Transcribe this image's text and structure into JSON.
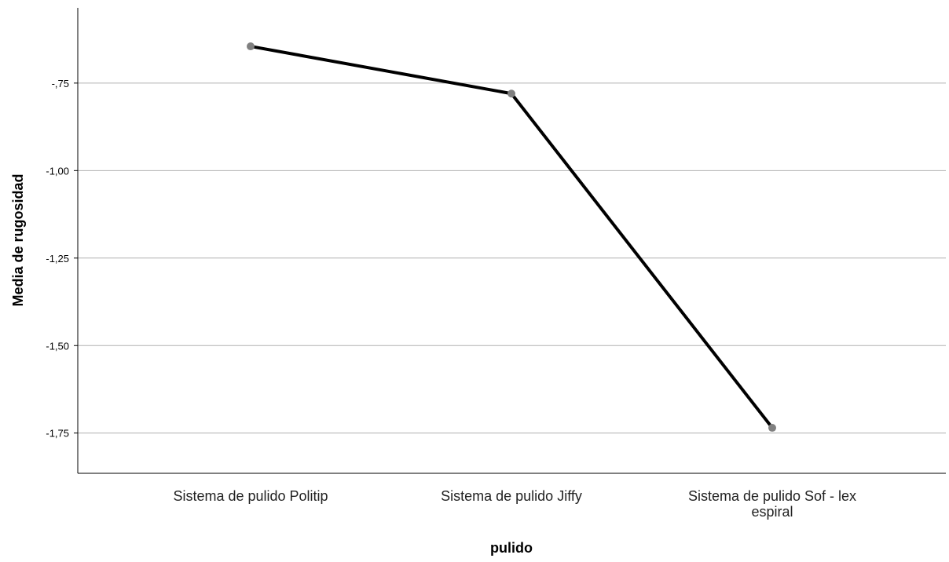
{
  "chart_data": {
    "type": "line",
    "categories": [
      [
        "Sistema de pulido Politip"
      ],
      [
        "Sistema de pulido Jiffy"
      ],
      [
        "Sistema de pulido Sof - lex",
        "espiral"
      ]
    ],
    "series": [
      {
        "values": [
          -0.645,
          -0.78,
          -1.735
        ]
      }
    ],
    "xlabel": "pulido",
    "ylabel": "Media de rugosidad",
    "yticks": [
      -0.75,
      -1.0,
      -1.25,
      -1.5,
      -1.75
    ],
    "ytick_labels": [
      "-,75",
      "-1,00",
      "-1,25",
      "-1,50",
      "-1,75"
    ],
    "ylim": [
      -1.865,
      -0.535
    ],
    "grid": true,
    "line_color": "#000000",
    "marker_color": "#808080",
    "grid_color": "#b0b0b0"
  }
}
